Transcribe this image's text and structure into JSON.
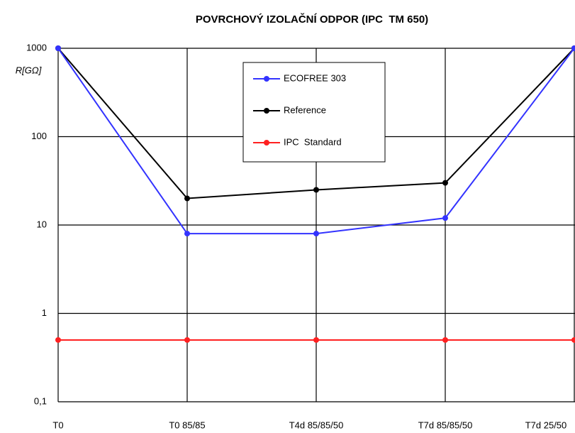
{
  "chart_data": {
    "type": "line",
    "title": "POVRCHOVÝ IZOLAČNÍ ODPOR (IPC  TM 650)",
    "ylabel": "R[GΩ]",
    "categories": [
      "T0",
      "T0 85/85",
      "T4d 85/85/50",
      "T7d 85/85/50",
      "T7d 25/50"
    ],
    "series": [
      {
        "name": "ECOFREE 303",
        "color": "#3333ff",
        "values": [
          1000,
          8,
          8,
          12,
          1000
        ]
      },
      {
        "name": "Reference",
        "color": "#000000",
        "values": [
          1000,
          20,
          25,
          30,
          1000
        ]
      },
      {
        "name": "IPC  Standard",
        "color": "#ff2020",
        "values": [
          0.5,
          0.5,
          0.5,
          0.5,
          0.5
        ]
      }
    ],
    "ylim": [
      0.1,
      1000
    ],
    "yticks": [
      {
        "value": 0.1,
        "label": "0,1"
      },
      1,
      10,
      100,
      1000
    ],
    "ylog": true,
    "grid": true,
    "legend": "upper center"
  }
}
